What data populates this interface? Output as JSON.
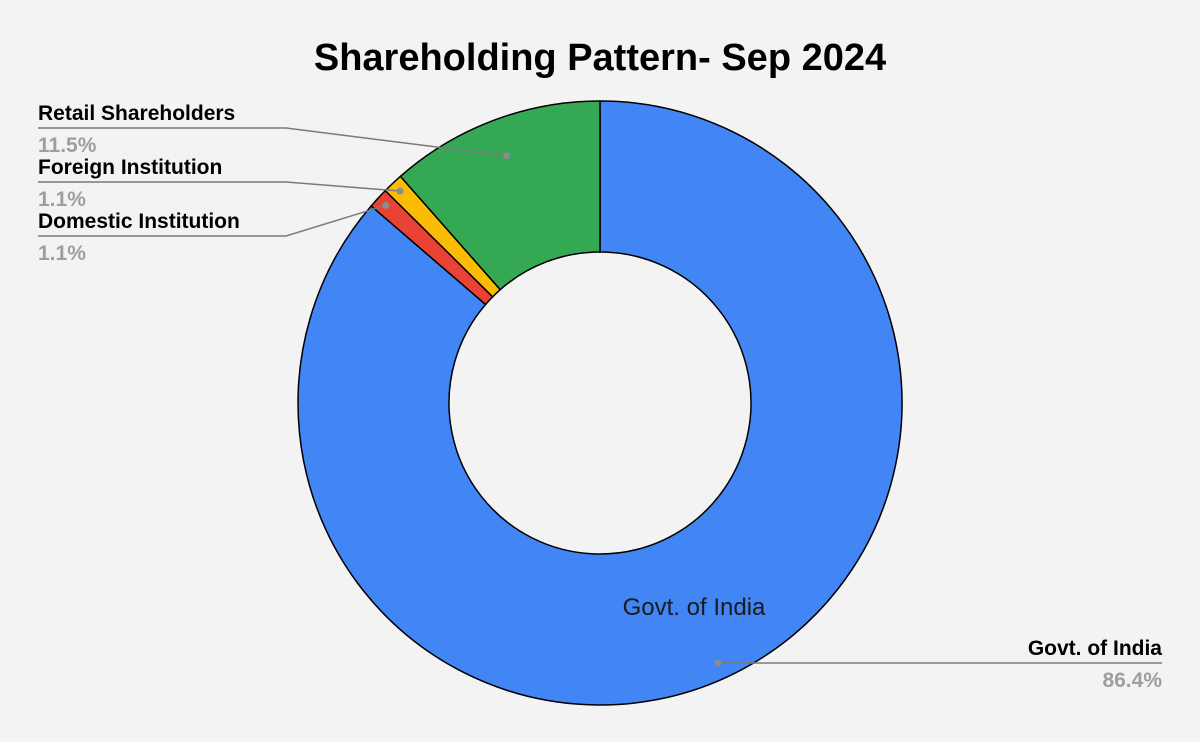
{
  "chart_data": {
    "type": "pie",
    "donut": true,
    "title": "Shareholding Pattern- Sep 2024",
    "legend": "none",
    "slices": [
      {
        "name": "Govt. of India",
        "value": 86.4,
        "label": "86.4%",
        "color": "#4285f4",
        "inner_label": "Govt. of India"
      },
      {
        "name": "Domestic Institution",
        "value": 1.1,
        "label": "1.1%",
        "color": "#ea4335"
      },
      {
        "name": "Foreign Institution",
        "value": 1.1,
        "label": "1.1%",
        "color": "#fbbc04"
      },
      {
        "name": "Retail Shareholders",
        "value": 11.5,
        "label": "11.5%",
        "color": "#34a853"
      }
    ]
  }
}
